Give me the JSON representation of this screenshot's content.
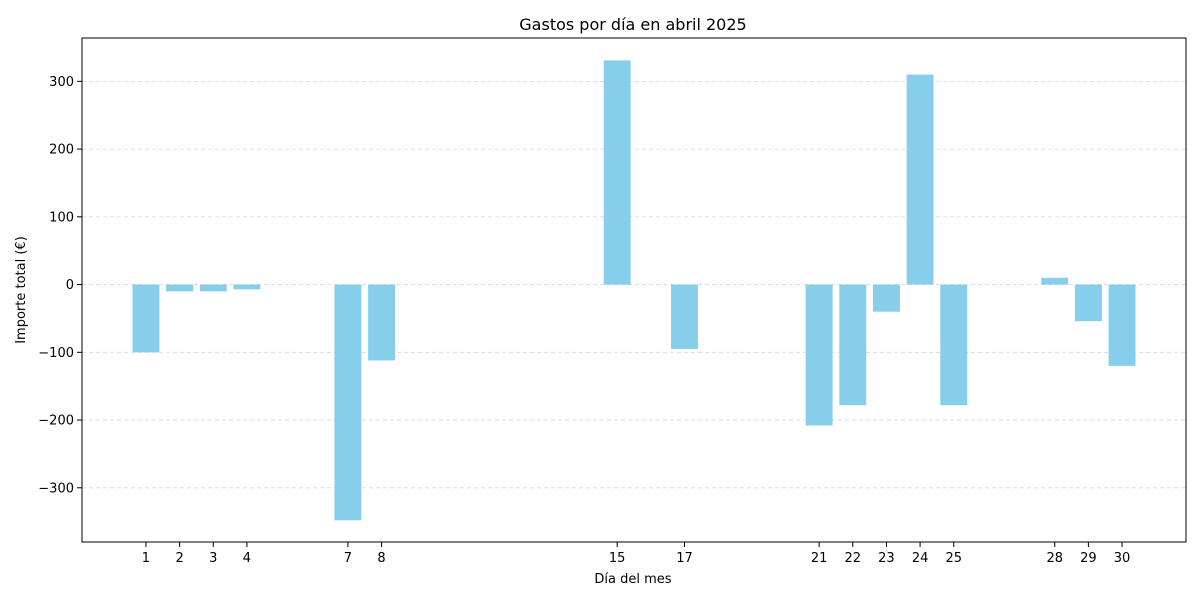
{
  "chart_data": {
    "type": "bar",
    "title": "Gastos por día en abril 2025",
    "xlabel": "Día del mes",
    "ylabel": "Importe total (€)",
    "x": [
      1,
      2,
      3,
      4,
      7,
      8,
      15,
      17,
      21,
      22,
      23,
      24,
      25,
      28,
      29,
      30
    ],
    "values": [
      -100,
      -10,
      -10,
      -7,
      -348,
      -112,
      331,
      -95,
      -208,
      -178,
      -40,
      310,
      -178,
      10,
      -54,
      -120
    ],
    "xlim": [
      -0.9,
      31.9
    ],
    "ylim": [
      -380,
      364
    ],
    "yticks": [
      -300,
      -200,
      -100,
      0,
      100,
      200,
      300
    ],
    "ytick_labels": [
      "−300",
      "−200",
      "−100",
      "0",
      "100",
      "200",
      "300"
    ],
    "xtick_labels": [
      "1",
      "2",
      "3",
      "4",
      "7",
      "8",
      "15",
      "17",
      "21",
      "22",
      "23",
      "24",
      "25",
      "28",
      "29",
      "30"
    ],
    "grid": {
      "y": true,
      "x": false,
      "style": "dashed"
    },
    "bar_width": 0.8,
    "bar_color": "#87CEEB"
  }
}
